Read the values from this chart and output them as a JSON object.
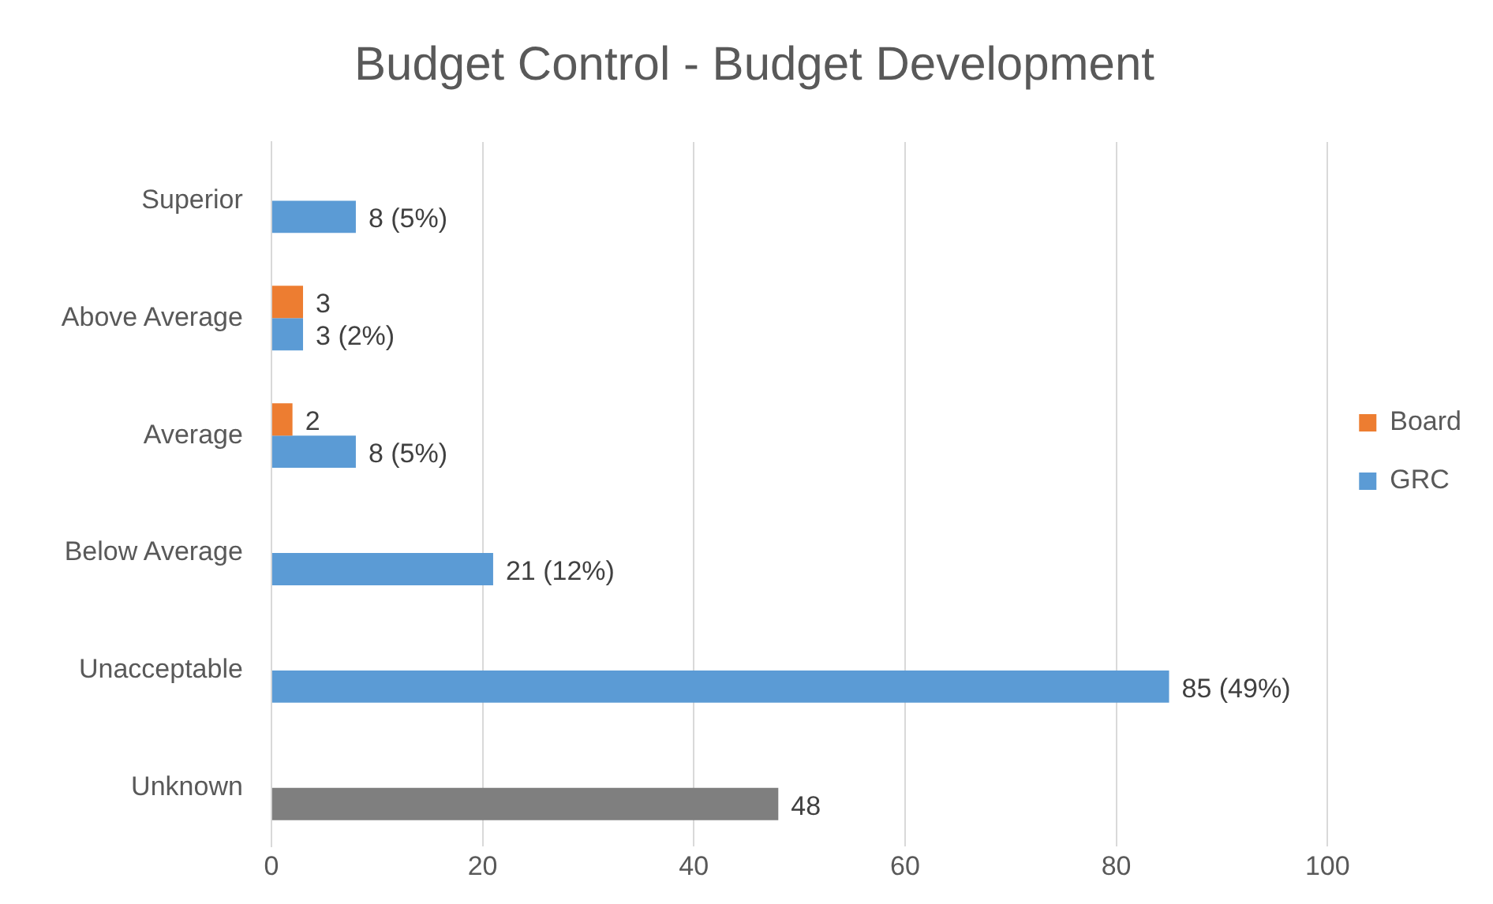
{
  "chart_data": {
    "type": "bar",
    "orientation": "horizontal",
    "title": "Budget Control - Budget Development",
    "categories": [
      "Superior",
      "Above Average",
      "Average",
      "Below Average",
      "Unacceptable",
      "Unknown"
    ],
    "series": [
      {
        "name": "Board",
        "color": "#ed7d31",
        "values": [
          null,
          3,
          2,
          null,
          null,
          null
        ],
        "value_labels": [
          null,
          "3",
          "2",
          null,
          null,
          null
        ]
      },
      {
        "name": "GRC",
        "color": "#5b9bd5",
        "colors": [
          "#5b9bd5",
          "#5b9bd5",
          "#5b9bd5",
          "#5b9bd5",
          "#5b9bd5",
          "#7f7f7f"
        ],
        "values": [
          8,
          3,
          8,
          21,
          85,
          48
        ],
        "value_labels": [
          "8 (5%)",
          "3 (2%)",
          "8 (5%)",
          "21 (12%)",
          "85 (49%)",
          "48"
        ]
      }
    ],
    "xlim": [
      0,
      100
    ],
    "xticks": [
      0,
      20,
      40,
      60,
      80,
      100
    ],
    "grid": "x",
    "legend": "right"
  }
}
